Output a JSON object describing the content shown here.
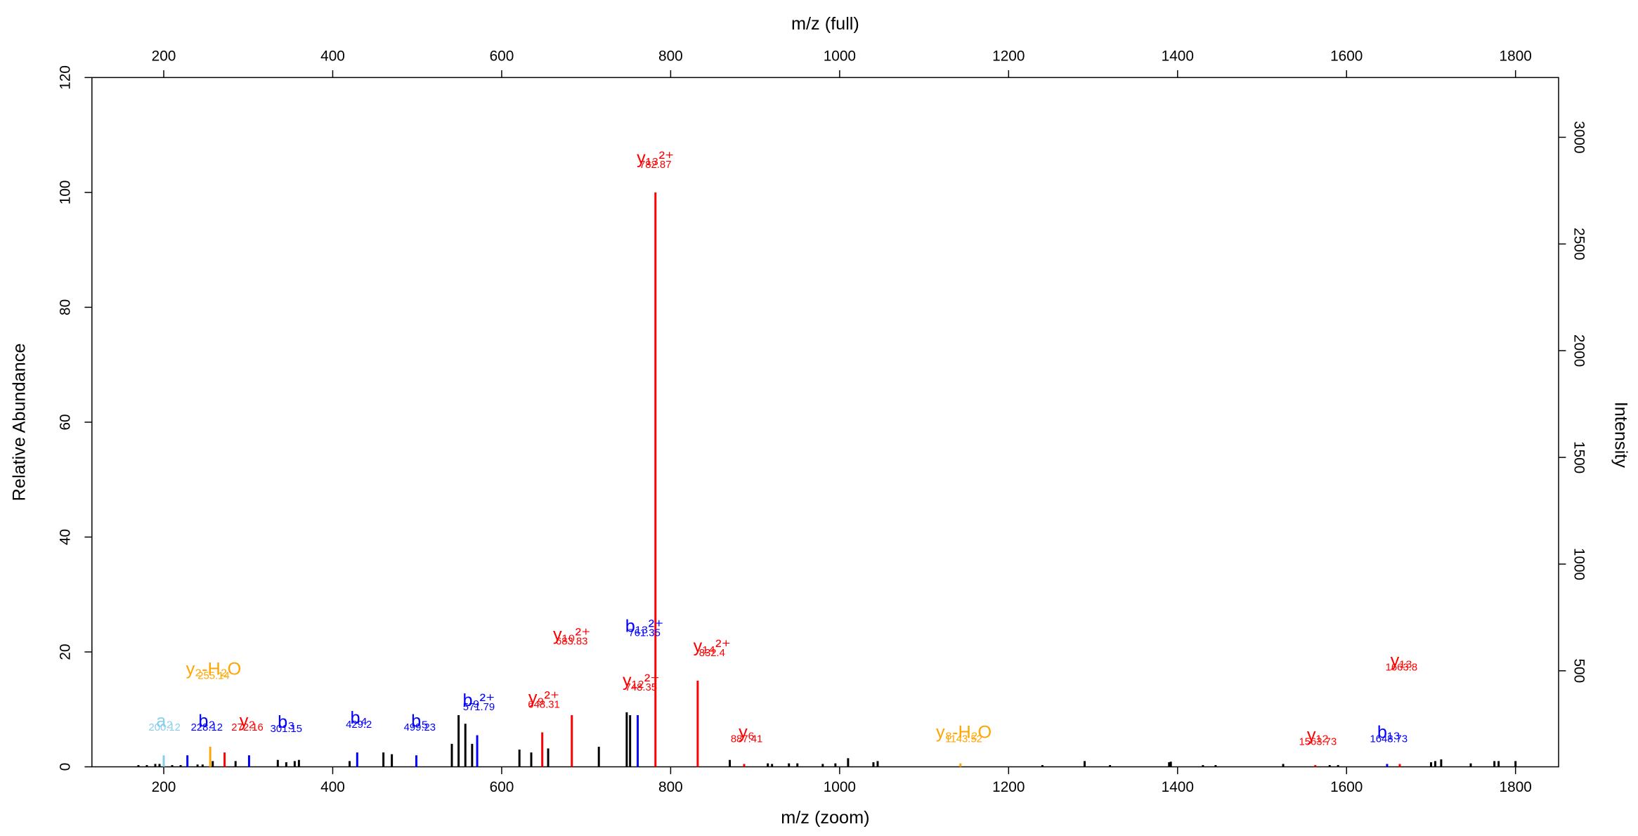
{
  "chart_data": {
    "type": "bar",
    "xlabel": "m/z (zoom)",
    "x2label": "m/z (full)",
    "ylabel": "Relative Abundance",
    "y2label": "Intensity",
    "xlim": [
      115,
      1851
    ],
    "xticks": [
      200,
      400,
      600,
      800,
      1000,
      1200,
      1400,
      1600,
      1800
    ],
    "ylim": [
      0,
      120
    ],
    "yticks": [
      0,
      20,
      40,
      60,
      80,
      100,
      120
    ],
    "y2lim": [
      50,
      3280
    ],
    "y2ticks": [
      500,
      1000,
      1500,
      2000,
      2500,
      3000
    ],
    "series": [
      {
        "color": "#000000",
        "x": [
          170,
          180,
          190,
          195,
          210,
          220,
          240,
          246,
          258,
          285,
          335,
          345,
          355,
          360,
          420,
          460,
          470,
          541,
          549,
          557,
          565,
          621,
          635,
          655,
          715,
          748,
          752,
          870,
          915,
          920,
          940,
          950,
          980,
          995,
          1010,
          1040,
          1045,
          1240,
          1290,
          1320,
          1390,
          1392,
          1430,
          1445,
          1525,
          1580,
          1590,
          1700,
          1705,
          1712,
          1747,
          1775,
          1780,
          1800
        ],
        "values": [
          0.3,
          0.3,
          0.5,
          0.5,
          0.3,
          0.3,
          0.4,
          0.4,
          1,
          1,
          1.2,
          0.8,
          1,
          1.2,
          1,
          2.5,
          2.2,
          4,
          9,
          7.5,
          4,
          3,
          2.5,
          3.2,
          3.5,
          9.5,
          9,
          1.2,
          0.6,
          0.5,
          0.6,
          0.6,
          0.5,
          0.6,
          1.5,
          0.8,
          1,
          0.3,
          1,
          0.3,
          0.8,
          0.9,
          0.3,
          0.3,
          0.5,
          0.3,
          0.3,
          0.8,
          1,
          1.3,
          0.6,
          1,
          1,
          1
        ]
      },
      {
        "color": "#ff0000",
        "x": [
          272,
          648,
          683,
          782,
          832,
          887,
          1563,
          1663
        ],
        "values": [
          2.5,
          6,
          9,
          100,
          15,
          0.5,
          0.3,
          0.5
        ]
      },
      {
        "color": "#0000ff",
        "x": [
          228,
          301,
          429,
          499,
          571,
          761,
          1648
        ],
        "values": [
          2,
          2,
          2.5,
          2,
          5.5,
          9,
          0.5
        ]
      },
      {
        "color": "#ffa500",
        "x": [
          255,
          1143
        ],
        "values": [
          3.5,
          0.6
        ]
      },
      {
        "color": "#87ceeb",
        "x": [
          200
        ],
        "values": [
          2
        ]
      }
    ],
    "annotations": [
      {
        "text": "y₁₃²⁺",
        "mz": "782.87",
        "x": 782,
        "y": 105,
        "color": "#ff0000"
      },
      {
        "text": "y₁₀²⁺",
        "mz": "683.83",
        "x": 683,
        "y": 22,
        "color": "#ff0000"
      },
      {
        "text": "b₁₃²⁺",
        "mz": "761.35",
        "x": 769,
        "y": 23.5,
        "color": "#0000ff"
      },
      {
        "text": "y₁₂²⁺",
        "mz": "748.35",
        "x": 765,
        "y": 14,
        "color": "#ff0000"
      },
      {
        "text": "y₁₄²⁺",
        "mz": "832.4",
        "x": 849,
        "y": 20,
        "color": "#ff0000"
      },
      {
        "text": "y₉²⁺",
        "mz": "648.31",
        "x": 650,
        "y": 11,
        "color": "#ff0000"
      },
      {
        "text": "b₉²⁺",
        "mz": "571.79",
        "x": 573,
        "y": 10.6,
        "color": "#0000ff"
      },
      {
        "text": "b₅",
        "mz": "499.23",
        "x": 503,
        "y": 7,
        "color": "#0000ff"
      },
      {
        "text": "b₄",
        "mz": "429.2",
        "x": 431,
        "y": 7.5,
        "color": "#0000ff"
      },
      {
        "text": "b₃",
        "mz": "301.15",
        "x": 345,
        "y": 6.8,
        "color": "#0000ff"
      },
      {
        "text": "y₂",
        "mz": "272.16",
        "x": 299,
        "y": 7,
        "color": "#ff0000"
      },
      {
        "text": "b₂",
        "mz": "228.12",
        "x": 251,
        "y": 7,
        "color": "#0000ff"
      },
      {
        "text": "a₂",
        "mz": "200.12",
        "x": 201,
        "y": 7,
        "color": "#87ceeb"
      },
      {
        "text": "y₂-H₂O",
        "mz": "255.14",
        "x": 259,
        "y": 16,
        "color": "#ffa500"
      },
      {
        "text": "y₆",
        "mz": "887.41",
        "x": 890,
        "y": 5,
        "color": "#ff0000"
      },
      {
        "text": "y₈-H₂O",
        "mz": "1143.52",
        "x": 1147,
        "y": 5,
        "color": "#ffa500"
      },
      {
        "text": "y₁₂",
        "mz": "1563.73",
        "x": 1566,
        "y": 4.5,
        "color": "#ff0000"
      },
      {
        "text": "b₁₃",
        "mz": "1648.73",
        "x": 1650,
        "y": 5,
        "color": "#0000ff"
      },
      {
        "text": "y₁₃",
        "mz": "1663.8",
        "x": 1665,
        "y": 17.5,
        "color": "#ff0000"
      }
    ]
  }
}
